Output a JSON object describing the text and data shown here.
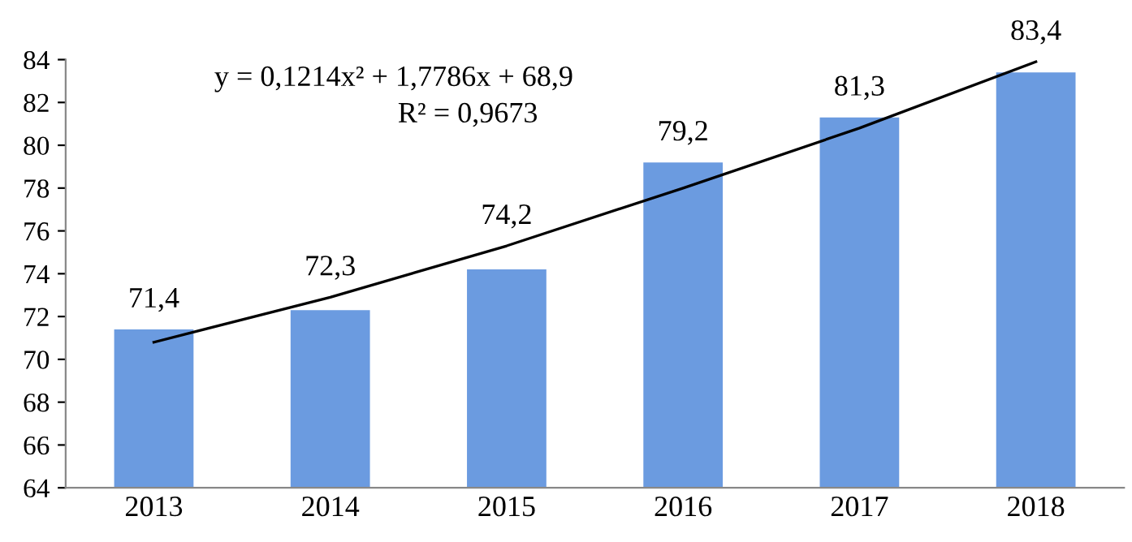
{
  "chart_data": {
    "type": "bar",
    "categories": [
      "2013",
      "2014",
      "2015",
      "2016",
      "2017",
      "2018"
    ],
    "series": [
      {
        "type": "bar",
        "color": "#6b9be0",
        "values": [
          71.4,
          72.3,
          74.2,
          79.2,
          81.3,
          83.4
        ],
        "value_labels": [
          "71,4",
          "72,3",
          "74,2",
          "79,2",
          "81,3",
          "83,4"
        ]
      },
      {
        "type": "line",
        "color": "#000000",
        "values": [
          70.8,
          72.9,
          75.3,
          78.0,
          80.8,
          83.9
        ]
      }
    ],
    "ylim": [
      64,
      84
    ],
    "yticks": [
      64,
      66,
      68,
      70,
      72,
      74,
      76,
      78,
      80,
      82,
      84
    ],
    "grid": false,
    "legend": false,
    "annotations": [
      "y = 0,1214x² + 1,7786x + 68,9",
      "R² = 0,9673"
    ]
  }
}
